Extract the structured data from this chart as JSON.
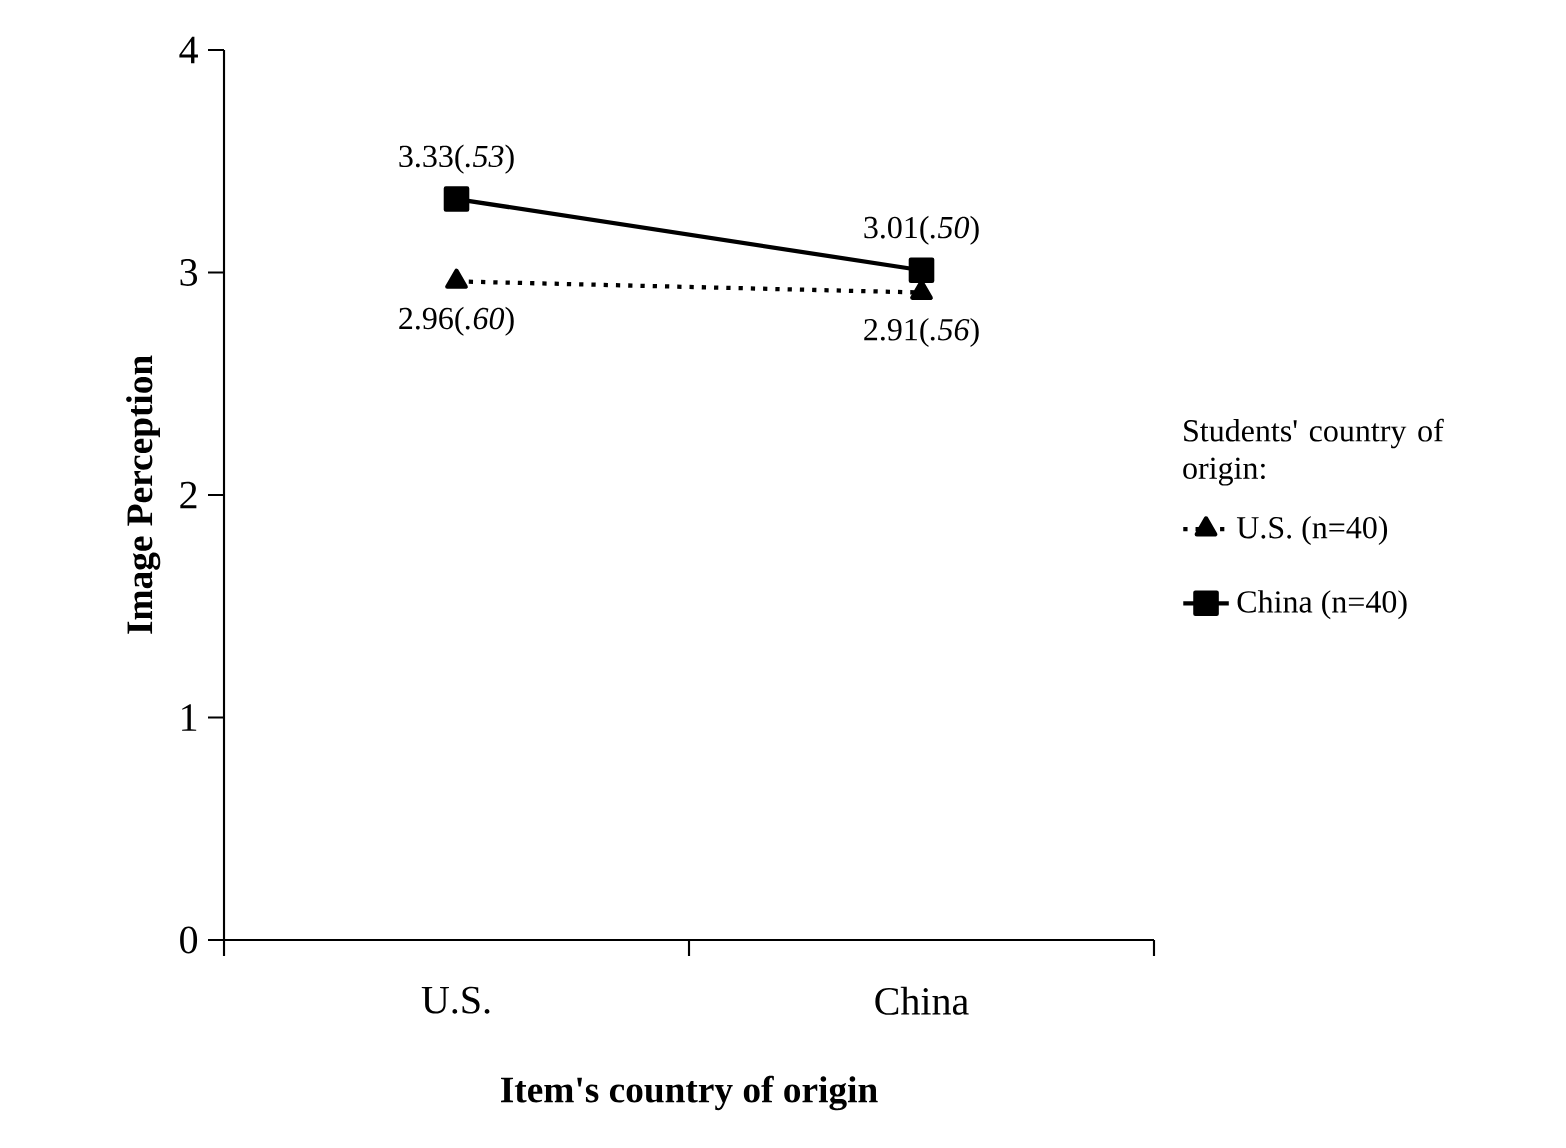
{
  "chart_data": {
    "type": "line",
    "xlabel": "Item's country of origin",
    "ylabel": "Image Perception",
    "legend_title": "Students' country of origin:",
    "categories": [
      "U.S.",
      "China"
    ],
    "series": [
      {
        "name": "U.S. (n=40)",
        "color": "#000000",
        "values": [
          2.96,
          2.91
        ],
        "marker": "triangle",
        "line_style": "dotted",
        "value_labels": [
          "2.96(*.60*)",
          "2.91(*.56*)"
        ]
      },
      {
        "name": "China (n=40)",
        "color": "#000000",
        "values": [
          3.33,
          3.01
        ],
        "marker": "square",
        "line_style": "solid",
        "value_labels": [
          "3.33(*.53*)",
          "3.01(*.50*)"
        ]
      }
    ],
    "ylim": [
      0,
      4
    ],
    "yticks": [
      0,
      1,
      2,
      3,
      4
    ],
    "grid": false,
    "legend": "right"
  }
}
